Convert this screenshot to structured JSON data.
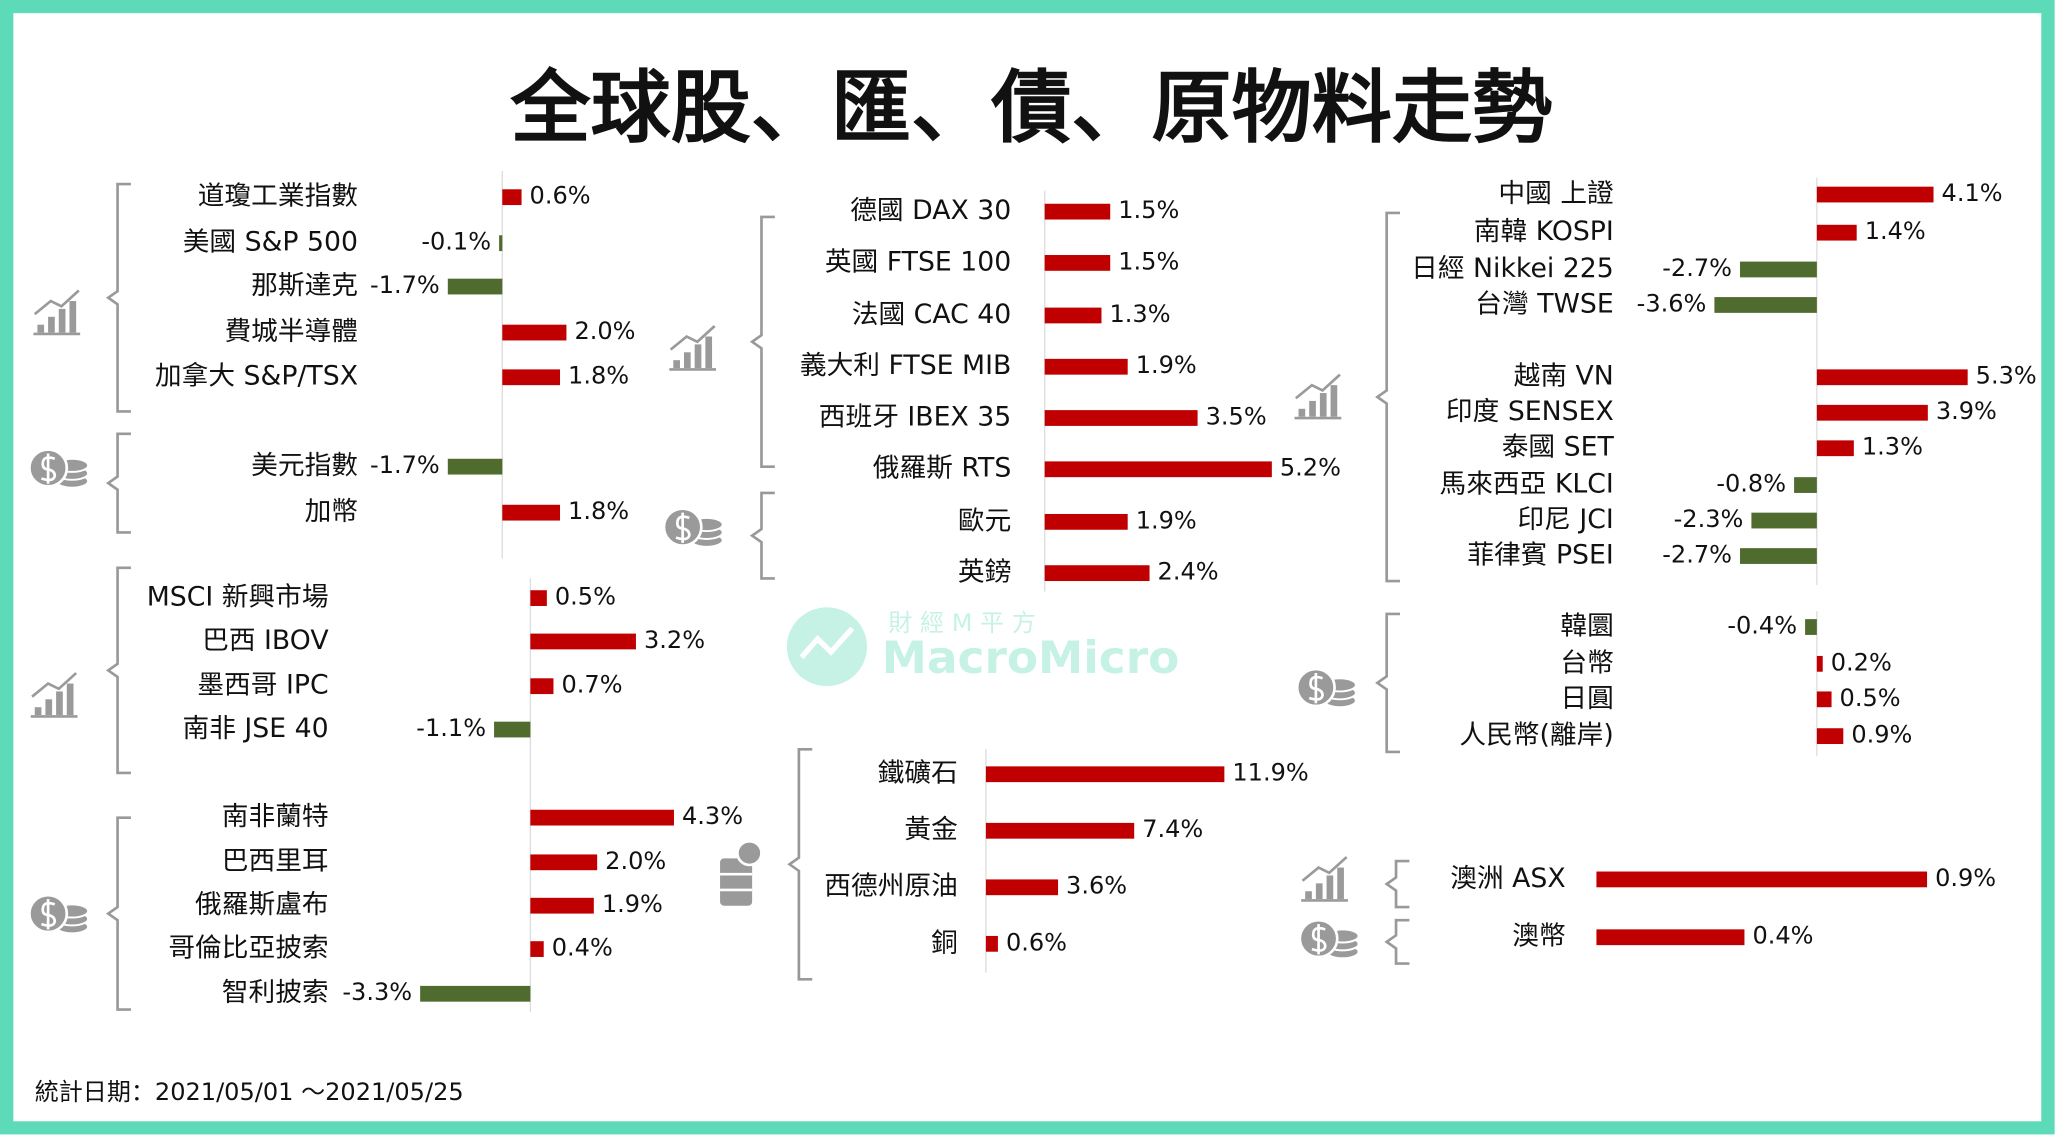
{
  "title": "全球股、匯、債、原物料走勢",
  "footnote": "統計日期：2021/05/01 ～2021/05/25",
  "watermark": {
    "cn": "財 經 M 平 方",
    "en": "MacroMicro"
  },
  "chart_data": [
    {
      "type": "bar",
      "categories": [
        "道瓊工業指數",
        "美國 S&P 500",
        "那斯達克",
        "費城半導體",
        "加拿大 S&P/TSX"
      ],
      "values": [
        0.6,
        -0.1,
        -1.7,
        2.0,
        1.8
      ],
      "value_labels": [
        "0.6%",
        "-0.1%",
        "-1.7%",
        "2.0%",
        "1.8%"
      ],
      "color": "#c00000",
      "negative_color": "#4f6b2e"
    },
    {
      "type": "bar",
      "categories": [
        "美元指數",
        "加幣"
      ],
      "values": [
        -1.7,
        1.8
      ],
      "value_labels": [
        "-1.7%",
        "1.8%"
      ],
      "color": "#c00000",
      "negative_color": "#4f6b2e"
    },
    {
      "type": "bar",
      "categories": [
        "MSCI 新興市場",
        "巴西 IBOV",
        "墨西哥 IPC",
        "南非 JSE 40"
      ],
      "values": [
        0.5,
        3.2,
        0.7,
        -1.1
      ],
      "value_labels": [
        "0.5%",
        "3.2%",
        "0.7%",
        "-1.1%"
      ],
      "color": "#c00000",
      "negative_color": "#4f6b2e"
    },
    {
      "type": "bar",
      "categories": [
        "南非蘭特",
        "巴西里耳",
        "俄羅斯盧布",
        "哥倫比亞披索",
        "智利披索"
      ],
      "values": [
        4.3,
        2.0,
        1.9,
        0.4,
        -3.3
      ],
      "value_labels": [
        "4.3%",
        "2.0%",
        "1.9%",
        "0.4%",
        "-3.3%"
      ],
      "color": "#c00000",
      "negative_color": "#4f6b2e"
    },
    {
      "type": "bar",
      "categories": [
        "德國 DAX 30",
        "英國 FTSE 100",
        "法國 CAC 40",
        "義大利 FTSE MIB",
        "西班牙 IBEX 35",
        "俄羅斯 RTS"
      ],
      "values": [
        1.5,
        1.5,
        1.3,
        1.9,
        3.5,
        5.2
      ],
      "value_labels": [
        "1.5%",
        "1.5%",
        "1.3%",
        "1.9%",
        "3.5%",
        "5.2%"
      ],
      "color": "#c00000",
      "negative_color": "#4f6b2e"
    },
    {
      "type": "bar",
      "categories": [
        "歐元",
        "英鎊"
      ],
      "values": [
        1.9,
        2.4
      ],
      "value_labels": [
        "1.9%",
        "2.4%"
      ],
      "color": "#c00000",
      "negative_color": "#4f6b2e"
    },
    {
      "type": "bar",
      "categories": [
        "鐵礦石",
        "黃金",
        "西德州原油",
        "銅"
      ],
      "values": [
        11.9,
        7.4,
        3.6,
        0.6
      ],
      "value_labels": [
        "11.9%",
        "7.4%",
        "3.6%",
        "0.6%"
      ],
      "color": "#c00000",
      "negative_color": "#4f6b2e"
    },
    {
      "type": "bar",
      "categories": [
        "中國 上證",
        "南韓 KOSPI",
        "日經 Nikkei 225",
        "台灣 TWSE",
        "越南 VN",
        "印度 SENSEX",
        "泰國 SET",
        "馬來西亞 KLCI",
        "印尼 JCI",
        "菲律賓 PSEI"
      ],
      "values": [
        4.1,
        1.4,
        -2.7,
        -3.6,
        5.3,
        3.9,
        1.3,
        -0.8,
        -2.3,
        -2.7
      ],
      "value_labels": [
        "4.1%",
        "1.4%",
        "-2.7%",
        "-3.6%",
        "5.3%",
        "3.9%",
        "1.3%",
        "-0.8%",
        "-2.3%",
        "-2.7%"
      ],
      "color": "#c00000",
      "negative_color": "#4f6b2e"
    },
    {
      "type": "bar",
      "categories": [
        "韓圜",
        "台幣",
        "日圓",
        "人民幣(離岸)"
      ],
      "values": [
        -0.4,
        0.2,
        0.5,
        0.9
      ],
      "value_labels": [
        "-0.4%",
        "0.2%",
        "0.5%",
        "0.9%"
      ],
      "color": "#c00000",
      "negative_color": "#4f6b2e"
    },
    {
      "type": "bar",
      "categories": [
        "澳洲 ASX"
      ],
      "values": [
        0.9
      ],
      "value_labels": [
        "0.9%"
      ],
      "color": "#c00000",
      "negative_color": "#4f6b2e"
    },
    {
      "type": "bar",
      "categories": [
        "澳幣"
      ],
      "values": [
        0.4
      ],
      "value_labels": [
        "0.4%"
      ],
      "color": "#c00000",
      "negative_color": "#4f6b2e"
    }
  ]
}
